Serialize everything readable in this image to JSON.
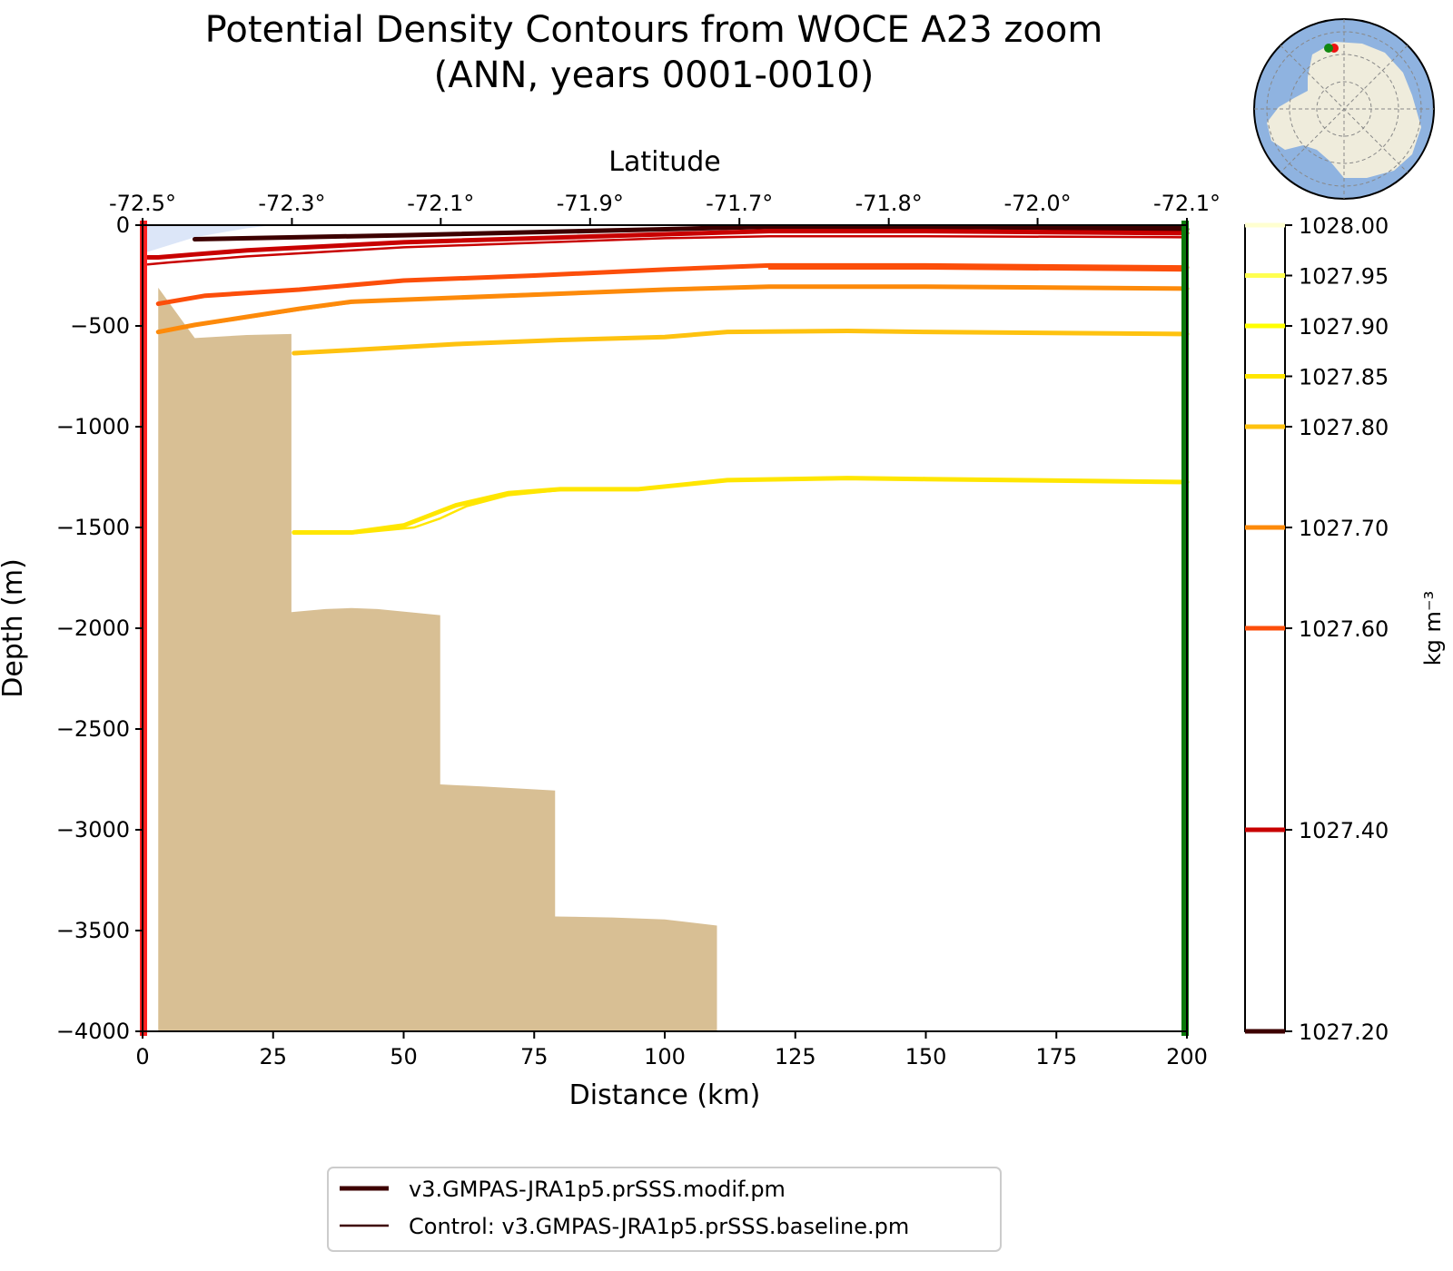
{
  "chart_data": {
    "type": "line",
    "title": [
      "Potential Density Contours from WOCE A23 zoom",
      "(ANN, years 0001-0010)"
    ],
    "xlabel": "Distance (km)",
    "ylabel": "Depth (m)",
    "top_axis_label": "Latitude",
    "xlim": [
      0,
      200
    ],
    "ylim": [
      -4000,
      0
    ],
    "x_ticks": [
      0,
      25,
      50,
      75,
      100,
      125,
      150,
      175,
      200
    ],
    "y_ticks": [
      0,
      -500,
      -1000,
      -1500,
      -2000,
      -2500,
      -3000,
      -3500,
      -4000
    ],
    "y_tick_labels": [
      "0",
      "−500",
      "−1000",
      "−1500",
      "−2000",
      "−2500",
      "−3000",
      "−3500",
      "−4000"
    ],
    "lat_ticks": [
      {
        "x": 0,
        "label": "-72.5°"
      },
      {
        "x": 28.6,
        "label": "-72.3°"
      },
      {
        "x": 57.1,
        "label": "-72.1°"
      },
      {
        "x": 85.7,
        "label": "-71.9°"
      },
      {
        "x": 114.3,
        "label": "-71.7°"
      },
      {
        "x": 142.9,
        "label": "-71.8°"
      },
      {
        "x": 171.4,
        "label": "-72.0°"
      },
      {
        "x": 200,
        "label": "-72.1°"
      }
    ],
    "colorbar": {
      "label": "kg m⁻³",
      "levels": [
        1028.0,
        1027.95,
        1027.9,
        1027.85,
        1027.8,
        1027.7,
        1027.6,
        1027.4,
        1027.2
      ],
      "level_labels": [
        "1028.00",
        "1027.95",
        "1027.90",
        "1027.85",
        "1027.80",
        "1027.70",
        "1027.60",
        "1027.40",
        "1027.20"
      ],
      "colors": [
        "#ffffd0",
        "#ffff50",
        "#ffff00",
        "#ffe600",
        "#fec20f",
        "#fd8a0a",
        "#fc4e0a",
        "#c80000",
        "#3d0000"
      ]
    },
    "bathymetry": {
      "color": "#d8bf94",
      "x": [
        0,
        3,
        3,
        10,
        20,
        28.5,
        28.5,
        35,
        40,
        45,
        57,
        57,
        65,
        79,
        79,
        90,
        100,
        110,
        110
      ],
      "depth": [
        -4000,
        -4000,
        -310,
        -560,
        -545,
        -540,
        -1920,
        -1905,
        -1900,
        -1905,
        -1935,
        -2775,
        -2785,
        -2805,
        -3430,
        -3435,
        -3445,
        -3475,
        -4000
      ]
    },
    "ice_shelf": {
      "color": "#dce6f8",
      "x": [
        0,
        0,
        10,
        20,
        25
      ],
      "depth": [
        0,
        -140,
        -60,
        -15,
        0
      ]
    },
    "series": [
      {
        "name": "v3.GMPAS-JRA1p5.prSSS.modif.pm",
        "style": "thick",
        "contours": [
          {
            "level": 1027.2,
            "color": "#3d0000",
            "x": [
              10,
              50,
              100,
              120,
              160,
              200
            ],
            "y": [
              -70,
              -50,
              -20,
              -8,
              -10,
              -20
            ]
          },
          {
            "level": 1027.4,
            "color": "#c80000",
            "x": [
              1,
              3,
              10,
              20,
              50,
              100,
              120,
              150,
              200
            ],
            "y": [
              -160,
              -160,
              -145,
              -125,
              -85,
              -45,
              -30,
              -30,
              -40
            ]
          },
          {
            "level": 1027.6,
            "color": "#fc4e0a",
            "x": [
              3,
              12,
              30,
              50,
              75,
              100,
              120,
              150,
              200
            ],
            "y": [
              -390,
              -350,
              -320,
              -275,
              -250,
              -220,
              -200,
              -200,
              -210
            ]
          },
          {
            "level": 1027.7,
            "color": "#fd8a0a",
            "x": [
              3,
              10,
              20,
              30,
              40,
              50,
              75,
              100,
              120,
              150,
              200
            ],
            "y": [
              -530,
              -495,
              -455,
              -415,
              -380,
              -370,
              -345,
              -320,
              -305,
              -305,
              -315
            ]
          },
          {
            "level": 1027.8,
            "color": "#fec20f",
            "x": [
              29,
              40,
              60,
              80,
              100,
              112,
              135,
              150,
              200
            ],
            "y": [
              -635,
              -620,
              -590,
              -570,
              -555,
              -530,
              -525,
              -530,
              -540
            ]
          },
          {
            "level": 1027.85,
            "color": "#ffe600",
            "x": [
              29,
              40,
              50,
              55,
              60,
              70,
              80,
              95,
              112,
              135,
              150,
              200
            ],
            "y": [
              -1525,
              -1525,
              -1490,
              -1440,
              -1390,
              -1330,
              -1310,
              -1310,
              -1265,
              -1255,
              -1260,
              -1275
            ]
          }
        ]
      },
      {
        "name": "Control: v3.GMPAS-JRA1p5.prSSS.baseline.pm",
        "style": "thin",
        "contours": [
          {
            "level": 1027.2,
            "color": "#3d0000",
            "x": [
              10,
              50,
              100,
              120,
              160,
              200
            ],
            "y": [
              -72,
              -50,
              -20,
              -5,
              -5,
              -10
            ]
          },
          {
            "level": 1027.4,
            "color": "#c80000",
            "x": [
              1,
              5,
              20,
              50,
              100,
              120,
              150,
              200
            ],
            "y": [
              -195,
              -185,
              -155,
              -110,
              -65,
              -55,
              -55,
              -60
            ]
          },
          {
            "level": 1027.6,
            "color": "#fc4e0a",
            "x": [
              120,
              150,
              200
            ],
            "y": [
              -215,
              -215,
              -225
            ]
          },
          {
            "level": 1027.7,
            "color": "#fd8a0a",
            "x": [
              3,
              15,
              30,
              40,
              50,
              75,
              100,
              120,
              150,
              200
            ],
            "y": [
              -525,
              -480,
              -420,
              -385,
              -368,
              -340,
              -320,
              -305,
              -305,
              -315
            ]
          },
          {
            "level": 1027.8,
            "color": "#fec20f",
            "x": [
              29,
              40,
              60,
              80,
              100,
              112,
              135,
              150,
              200
            ],
            "y": [
              -640,
              -622,
              -592,
              -572,
              -557,
              -532,
              -527,
              -532,
              -545
            ]
          },
          {
            "level": 1027.85,
            "color": "#ffe600",
            "x": [
              29,
              40,
              52,
              57,
              62,
              70,
              80,
              95,
              112,
              135,
              150,
              200
            ],
            "y": [
              -1530,
              -1530,
              -1500,
              -1455,
              -1395,
              -1340,
              -1315,
              -1312,
              -1268,
              -1258,
              -1262,
              -1278
            ]
          }
        ]
      }
    ],
    "section_endpoints": {
      "start_color": "#ff2020",
      "end_color": "#0a7a0a"
    },
    "inset_map": {
      "ocean_color": "#8fb3e0",
      "land_color": "#efecdc",
      "start_marker_color": "#ee1111",
      "end_marker_color": "#118811"
    },
    "legend": [
      {
        "label": "v3.GMPAS-JRA1p5.prSSS.modif.pm",
        "color": "#3d0000",
        "style": "thick"
      },
      {
        "label": "Control: v3.GMPAS-JRA1p5.prSSS.baseline.pm",
        "color": "#3d0000",
        "style": "thin"
      }
    ]
  }
}
